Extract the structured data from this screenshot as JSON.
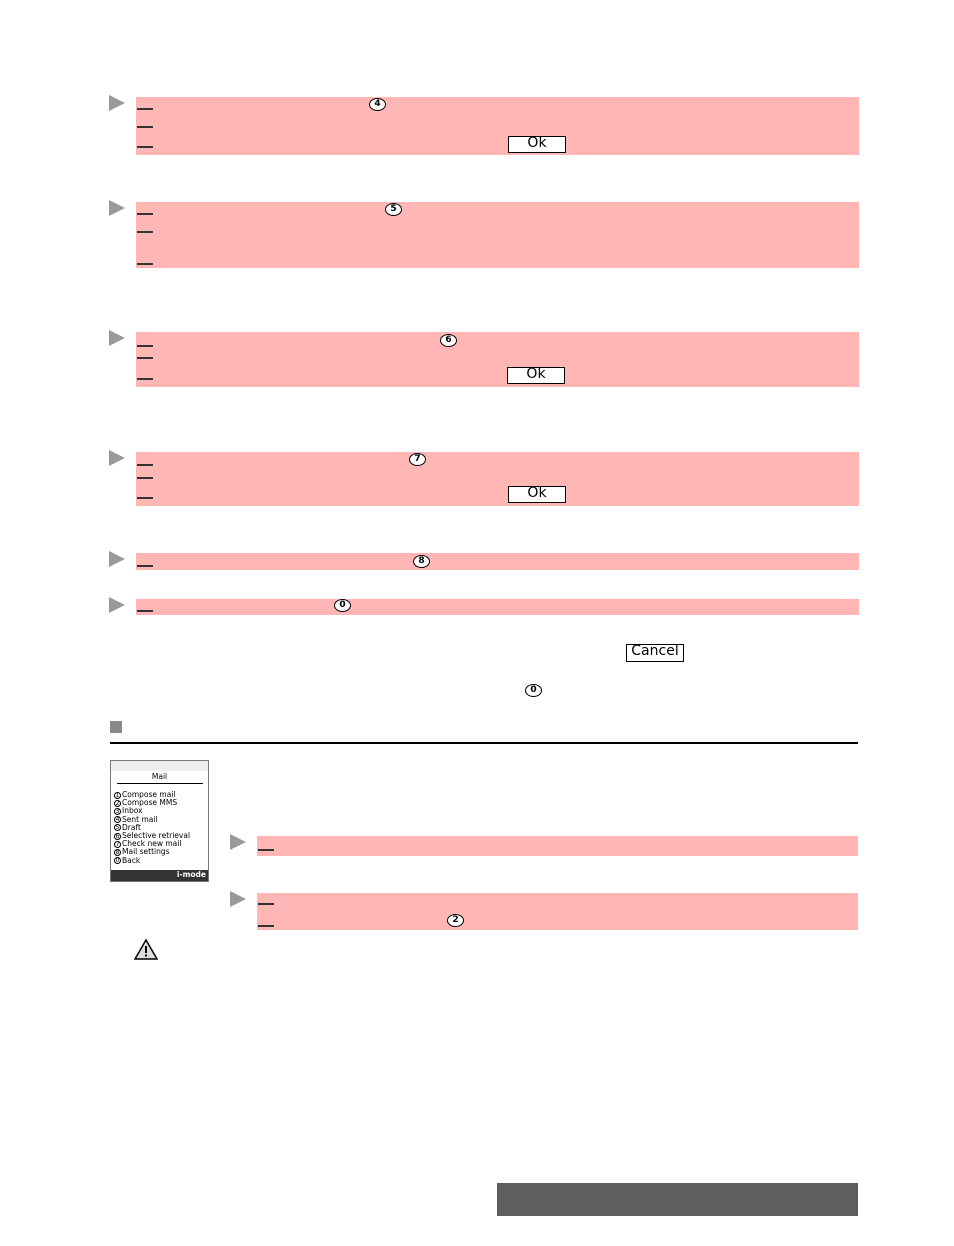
{
  "steps": [
    {
      "key": "4",
      "button": "Ok"
    },
    {
      "key": "5"
    },
    {
      "key": "6",
      "button": "Ok"
    },
    {
      "key": "7",
      "button": "Ok"
    },
    {
      "key": "8"
    },
    {
      "key": "0"
    }
  ],
  "cancel_button": "Cancel",
  "end_key": "0",
  "phone": {
    "title": "Mail",
    "menu": [
      {
        "key": "1",
        "label": "Compose mail"
      },
      {
        "key": "2",
        "label": "Compose MMS"
      },
      {
        "key": "3",
        "label": "Inbox"
      },
      {
        "key": "4",
        "label": "Sent mail"
      },
      {
        "key": "5",
        "label": "Draft"
      },
      {
        "key": "6",
        "label": "Selective retrieval"
      },
      {
        "key": "7",
        "label": "Check new mail"
      },
      {
        "key": "8",
        "label": "Mail settings"
      },
      {
        "key": "0",
        "label": "Back"
      }
    ],
    "softkey": "i-mode"
  },
  "sub_step_key": "2"
}
